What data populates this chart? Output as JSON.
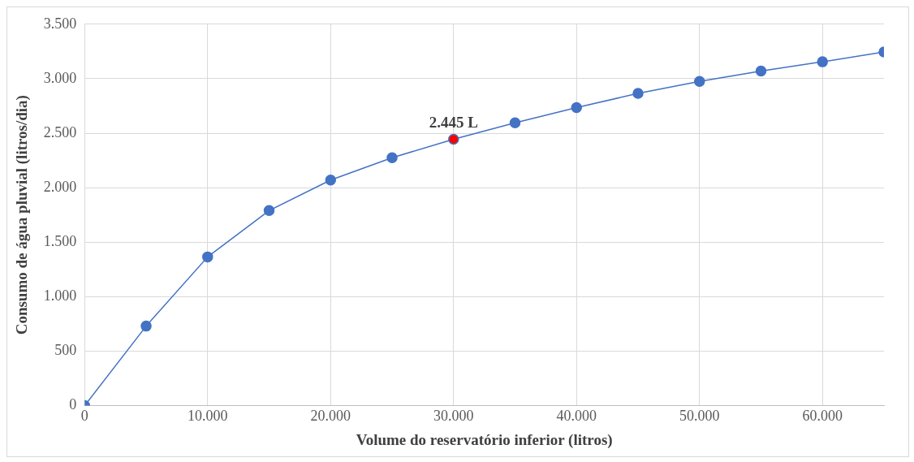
{
  "chart_data": {
    "type": "line",
    "xlabel": "Volume do reservatório inferior (litros)",
    "ylabel": "Consumo de água pluvial (litros/dia)",
    "x": [
      0,
      5000,
      10000,
      15000,
      20000,
      25000,
      30000,
      35000,
      40000,
      45000,
      50000,
      55000,
      60000,
      65000
    ],
    "series": [
      {
        "color": "#4472c4",
        "colors": [
          "#4472c4",
          "#4472c4",
          "#4472c4",
          "#4472c4",
          "#4472c4",
          "#4472c4",
          "#ff0000",
          "#4472c4",
          "#4472c4",
          "#4472c4",
          "#4472c4",
          "#4472c4",
          "#4472c4",
          "#4472c4"
        ],
        "values": [
          0,
          730,
          1365,
          1790,
          2070,
          2275,
          2445,
          2595,
          2735,
          2865,
          2975,
          3070,
          3155,
          3245
        ]
      }
    ],
    "annotations": [
      {
        "text": "2.445 L",
        "x": 30000,
        "y": 2445
      }
    ],
    "xlim": [
      0,
      65000
    ],
    "xticks": [
      {
        "value": 0,
        "label": "0"
      },
      {
        "value": 10000,
        "label": "10.000"
      },
      {
        "value": 20000,
        "label": "20.000"
      },
      {
        "value": 30000,
        "label": "30.000"
      },
      {
        "value": 40000,
        "label": "40.000"
      },
      {
        "value": 50000,
        "label": "50.000"
      },
      {
        "value": 60000,
        "label": "60.000"
      }
    ],
    "ylim": [
      0,
      3500
    ],
    "yticks": [
      {
        "value": 0,
        "label": "0"
      },
      {
        "value": 500,
        "label": "500"
      },
      {
        "value": 1000,
        "label": "1.000"
      },
      {
        "value": 1500,
        "label": "1.500"
      },
      {
        "value": 2000,
        "label": "2.000"
      },
      {
        "value": 2500,
        "label": "2.500"
      },
      {
        "value": 3000,
        "label": "3.000"
      },
      {
        "value": 3500,
        "label": "3.500"
      }
    ],
    "grid": true,
    "legend": false,
    "marker": "circle",
    "line_style": "solid"
  }
}
